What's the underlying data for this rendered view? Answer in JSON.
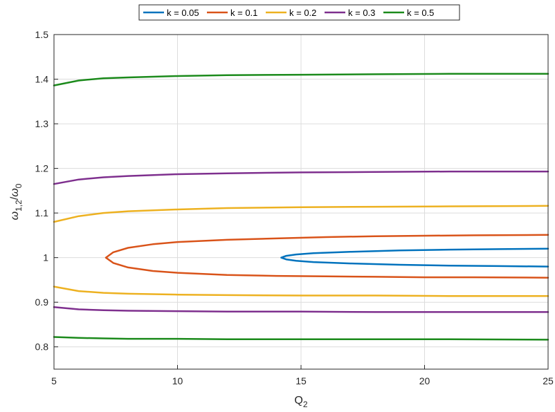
{
  "chart_data": {
    "type": "line",
    "title": "",
    "xlabel": {
      "main": "Q",
      "sub": "2"
    },
    "ylabel": {
      "w1": "ω",
      "sub1": "1,2",
      "slash": "/",
      "w2": "ω",
      "sub2": "0"
    },
    "xlim": [
      5,
      25
    ],
    "ylim": [
      0.75,
      1.5
    ],
    "xticks": [
      5,
      10,
      15,
      20,
      25
    ],
    "xtick_labels": [
      "5",
      "10",
      "15",
      "20",
      "25"
    ],
    "yticks": [
      0.8,
      0.9,
      1.0,
      1.1,
      1.2,
      1.3,
      1.4,
      1.5
    ],
    "ytick_labels": [
      "0.8",
      "0.9",
      "1",
      "1.1",
      "1.2",
      "1.3",
      "1.4",
      "1.5"
    ],
    "grid": true,
    "legend": "top-center-outside-horizontal",
    "series": [
      {
        "name": "k = 0.05",
        "color": "#0072BD",
        "upper": {
          "x": [
            14.2,
            14.4,
            14.8,
            15.5,
            17,
            19,
            21,
            23,
            25
          ],
          "y": [
            1.0,
            1.004,
            1.007,
            1.01,
            1.013,
            1.016,
            1.018,
            1.019,
            1.02
          ]
        },
        "lower": {
          "x": [
            14.2,
            14.4,
            14.8,
            15.5,
            17,
            19,
            21,
            23,
            25
          ],
          "y": [
            1.0,
            0.996,
            0.993,
            0.99,
            0.987,
            0.984,
            0.982,
            0.981,
            0.98
          ]
        }
      },
      {
        "name": "k = 0.1",
        "color": "#D95319",
        "upper": {
          "x": [
            7.1,
            7.4,
            8,
            9,
            10,
            12,
            14,
            16,
            18,
            20,
            22,
            25
          ],
          "y": [
            1.0,
            1.012,
            1.022,
            1.03,
            1.035,
            1.04,
            1.043,
            1.046,
            1.048,
            1.049,
            1.05,
            1.051
          ]
        },
        "lower": {
          "x": [
            7.1,
            7.4,
            8,
            9,
            10,
            12,
            14,
            16,
            18,
            20,
            22,
            25
          ],
          "y": [
            1.0,
            0.988,
            0.978,
            0.97,
            0.966,
            0.961,
            0.959,
            0.958,
            0.957,
            0.956,
            0.956,
            0.955
          ]
        }
      },
      {
        "name": "k = 0.2",
        "color": "#EDB120",
        "upper": {
          "x": [
            5,
            6,
            7,
            8,
            10,
            12,
            15,
            18,
            21,
            25
          ],
          "y": [
            1.08,
            1.093,
            1.1,
            1.104,
            1.108,
            1.111,
            1.113,
            1.114,
            1.115,
            1.116
          ]
        },
        "lower": {
          "x": [
            5,
            6,
            7,
            8,
            10,
            12,
            15,
            18,
            21,
            25
          ],
          "y": [
            0.935,
            0.925,
            0.921,
            0.919,
            0.917,
            0.916,
            0.915,
            0.915,
            0.914,
            0.914
          ]
        }
      },
      {
        "name": "k = 0.3",
        "color": "#7E2F8E",
        "upper": {
          "x": [
            5,
            6,
            7,
            8,
            10,
            12,
            15,
            18,
            21,
            25
          ],
          "y": [
            1.165,
            1.175,
            1.18,
            1.183,
            1.187,
            1.189,
            1.191,
            1.192,
            1.193,
            1.193
          ]
        },
        "lower": {
          "x": [
            5,
            6,
            7,
            8,
            10,
            12,
            15,
            18,
            21,
            25
          ],
          "y": [
            0.889,
            0.884,
            0.882,
            0.881,
            0.88,
            0.879,
            0.879,
            0.878,
            0.878,
            0.878
          ]
        }
      },
      {
        "name": "k = 0.5",
        "color": "#1B8A1B",
        "upper": {
          "x": [
            5,
            6,
            7,
            8,
            10,
            12,
            15,
            18,
            21,
            25
          ],
          "y": [
            1.386,
            1.397,
            1.402,
            1.404,
            1.407,
            1.409,
            1.41,
            1.411,
            1.412,
            1.412
          ]
        },
        "lower": {
          "x": [
            5,
            6,
            7,
            8,
            10,
            12,
            15,
            18,
            21,
            25
          ],
          "y": [
            0.822,
            0.82,
            0.819,
            0.818,
            0.818,
            0.817,
            0.817,
            0.817,
            0.817,
            0.816
          ]
        }
      }
    ]
  }
}
